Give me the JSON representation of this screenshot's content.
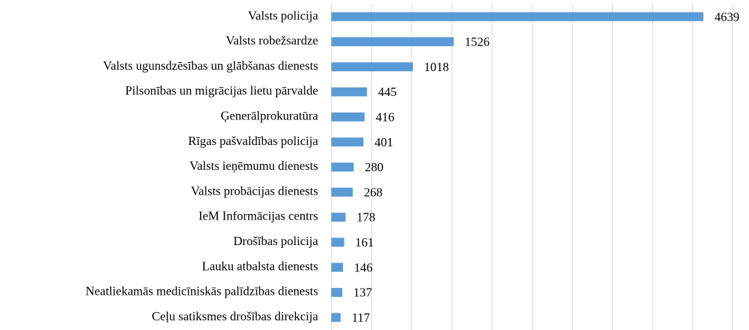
{
  "chart_data": {
    "type": "bar",
    "orientation": "horizontal",
    "categories": [
      "Valsts policija",
      "Valsts robežsardze",
      "Valsts ugunsdzēsības un glābšanas dienests",
      "Pilsonības un migrācijas lietu pārvalde",
      "Ģenerālprokuratūra",
      "Rīgas pašvaldības policija",
      "Valsts ieņēmumu dienests",
      "Valsts probācijas dienests",
      "IeM Informācijas centrs",
      "Drošības policija",
      "Lauku atbalsta dienests",
      "Neatliekamās medicīniskās palīdzības dienests",
      "Ceļu satiksmes drošības direkcija"
    ],
    "values": [
      4639,
      1526,
      1018,
      445,
      416,
      401,
      280,
      268,
      178,
      161,
      146,
      137,
      117
    ],
    "color": "#5b9bd5",
    "xlim": [
      0,
      5000
    ],
    "xticks": [
      0,
      500,
      1000,
      1500,
      2000,
      2500,
      3000,
      3500,
      4000,
      4500,
      5000
    ],
    "grid": true
  }
}
